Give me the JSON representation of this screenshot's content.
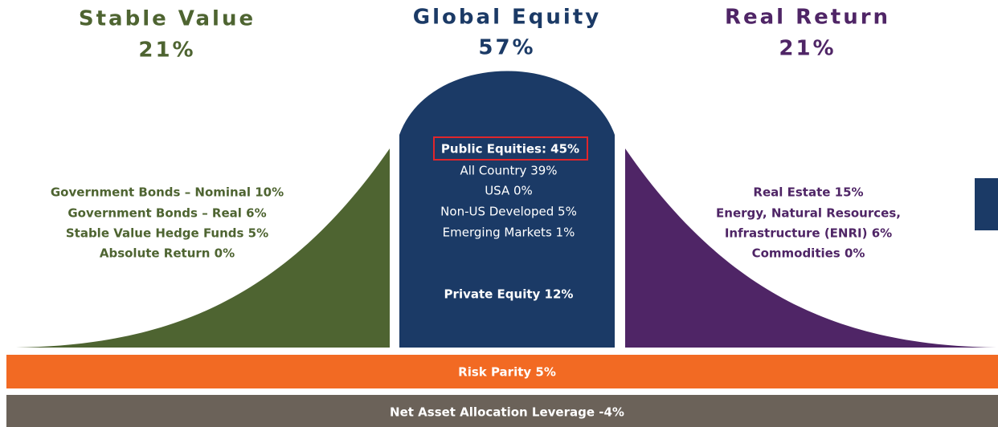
{
  "sections": [
    {
      "title": "Stable Value",
      "percent": "21%",
      "items": [
        "Government Bonds – Nominal 10%",
        "Government Bonds – Real 6%",
        "Stable Value Hedge Funds 5%",
        "Absolute Return 0%"
      ]
    },
    {
      "title": "Global Equity",
      "percent": "57%",
      "highlight": "Public Equities: 45%",
      "items": [
        "All Country 39%",
        "USA 0%",
        "Non-US Developed 5%",
        "Emerging Markets 1%"
      ],
      "footer": "Private Equity 12%"
    },
    {
      "title": "Real Return",
      "percent": "21%",
      "items": [
        "Real Estate 15%",
        "Energy, Natural Resources,",
        "Infrastructure (ENRI) 6%",
        "Commodities 0%"
      ]
    }
  ],
  "bars": [
    "Risk Parity 5%",
    "Net Asset Allocation Leverage -4%"
  ]
}
